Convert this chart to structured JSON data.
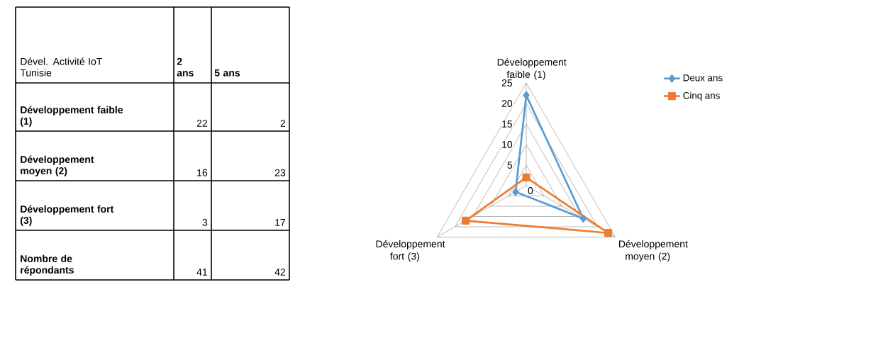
{
  "chart_data": {
    "type": "radar",
    "categories": [
      "Développement faible (1)",
      "Développement moyen (2)",
      "Développement fort (3)"
    ],
    "series": [
      {
        "name": "Deux ans",
        "color": "#5b9bd5",
        "marker": "diamond",
        "values": [
          22,
          16,
          3
        ]
      },
      {
        "name": "Cinq ans",
        "color": "#ed7d31",
        "marker": "square",
        "values": [
          2,
          23,
          17
        ]
      }
    ],
    "ylim": [
      0,
      25
    ],
    "yticks": [
      0,
      5,
      10,
      15,
      20,
      25
    ],
    "grid": true,
    "legend": "top right",
    "annotations": [
      "Dével. Activité IoT Tunisie",
      "2 ans",
      "5 ans",
      "Développement faible (1)",
      "22",
      "2",
      "Développement moyen (2)",
      "16",
      "23",
      "Développement fort (3)",
      "3",
      "17",
      "Nombre de répondants",
      "41",
      "42"
    ]
  }
}
